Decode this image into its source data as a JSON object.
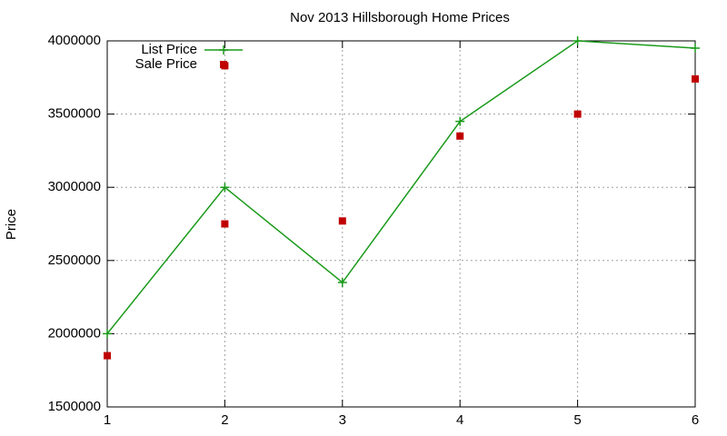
{
  "chart_data": {
    "type": "line",
    "title": "Nov 2013 Hillsborough Home Prices",
    "y_label": "Price",
    "xlim": [
      1,
      6
    ],
    "xticks": [
      1,
      2,
      3,
      4,
      5,
      6
    ],
    "ylim": [
      1500000,
      4000000
    ],
    "yticks": [
      1500000,
      2000000,
      2500000,
      3000000,
      3500000,
      4000000
    ],
    "grid": true,
    "legend": "top-left",
    "series": [
      {
        "name": "List Price",
        "color": "#1a9a1a",
        "style": "linespoints",
        "x": [
          1,
          2,
          3,
          4,
          5,
          6
        ],
        "values": [
          2000000,
          3000000,
          2350000,
          3450000,
          4000000,
          3950000
        ]
      },
      {
        "name": "Sale Price",
        "color": "#c00000",
        "style": "points",
        "x": [
          1,
          2,
          2,
          3,
          4,
          5,
          6
        ],
        "values": [
          1850000,
          3830000,
          2750000,
          2770000,
          3350000,
          3500000,
          3740000
        ]
      }
    ]
  }
}
